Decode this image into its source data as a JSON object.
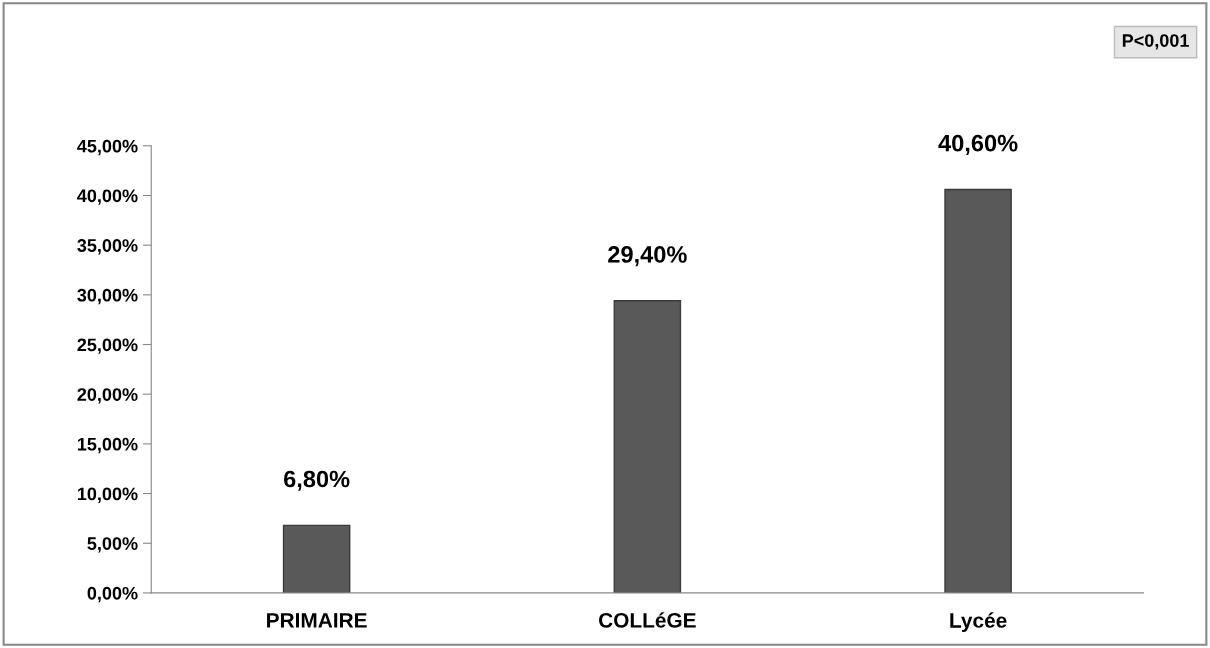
{
  "chart_data": {
    "type": "bar",
    "categories": [
      "PRIMAIRE",
      "COLLéGE",
      "Lycée"
    ],
    "values": [
      6.8,
      29.4,
      40.6
    ],
    "color": "#595959",
    "value_labels": [
      "6,80%",
      "29,40%",
      "40,60%"
    ],
    "ylim": [
      0,
      45
    ],
    "yticks": [
      {
        "value": 0,
        "label": "0,00%"
      },
      {
        "value": 5,
        "label": "5,00%"
      },
      {
        "value": 10,
        "label": "10,00%"
      },
      {
        "value": 15,
        "label": "15,00%"
      },
      {
        "value": 20,
        "label": "20,00%"
      },
      {
        "value": 25,
        "label": "25,00%"
      },
      {
        "value": 30,
        "label": "30,00%"
      },
      {
        "value": 35,
        "label": "35,00%"
      },
      {
        "value": 40,
        "label": "40,00%"
      },
      {
        "value": 45,
        "label": "45,00%"
      }
    ],
    "grid": false,
    "legend": false,
    "annotations": [
      "P<0,001"
    ]
  }
}
